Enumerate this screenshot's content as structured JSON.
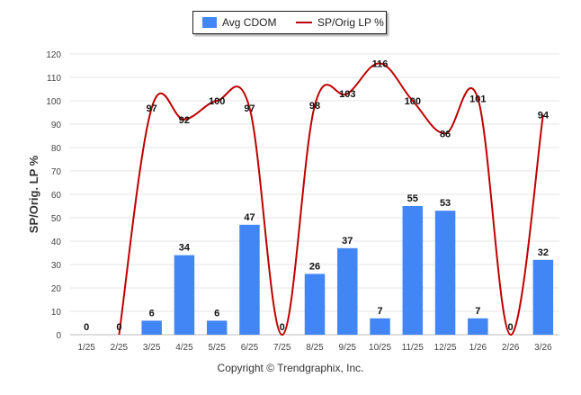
{
  "chart_data": {
    "type": "bar+line",
    "ylabel": "SP/Orig. LP %",
    "ylim": [
      0,
      120
    ],
    "yticks": [
      0,
      10,
      20,
      30,
      40,
      50,
      60,
      70,
      80,
      90,
      100,
      110,
      120
    ],
    "grid": true,
    "categories": [
      "1/25",
      "2/25",
      "3/25",
      "4/25",
      "5/25",
      "6/25",
      "7/25",
      "8/25",
      "9/25",
      "10/25",
      "11/25",
      "12/25",
      "1/26",
      "2/26",
      "3/26"
    ],
    "series": [
      {
        "name": "Avg CDOM",
        "kind": "bar",
        "color": "#4285f4",
        "values": [
          0,
          0,
          6,
          34,
          6,
          47,
          0,
          26,
          37,
          7,
          55,
          53,
          7,
          0,
          32
        ]
      },
      {
        "name": "SP/Orig LP %",
        "kind": "line",
        "color": "#c00000",
        "values": [
          null,
          null,
          97,
          92,
          100,
          97,
          null,
          98,
          103,
          116,
          100,
          86,
          101,
          null,
          94
        ]
      }
    ],
    "legend": "top-center"
  },
  "footer": {
    "copyright": "Copyright © Trendgraphix, Inc."
  }
}
